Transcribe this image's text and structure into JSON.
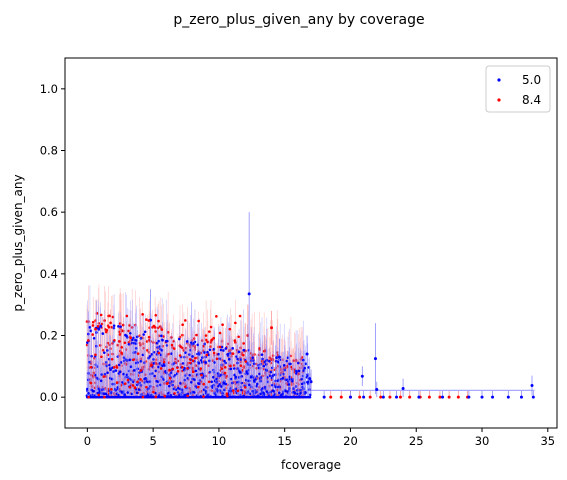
{
  "chart_data": {
    "type": "scatter",
    "title": "p_zero_plus_given_any by coverage",
    "xlabel": "fcoverage",
    "ylabel": "p_zero_plus_given_any",
    "xlim": [
      -1.7,
      35.7
    ],
    "ylim": [
      -0.1,
      1.1
    ],
    "xticks": [
      0,
      5,
      10,
      15,
      20,
      25,
      30,
      35
    ],
    "yticks": [
      0.0,
      0.2,
      0.4,
      0.6,
      0.8,
      1.0
    ],
    "xtick_labels": [
      "0",
      "5",
      "10",
      "15",
      "20",
      "25",
      "30",
      "35"
    ],
    "ytick_labels": [
      "0.0",
      "0.2",
      "0.4",
      "0.6",
      "0.8",
      "1.0"
    ],
    "grid": false,
    "legend_position": "upper right",
    "series": [
      {
        "name": "5.0",
        "color": "#0000ff",
        "error_color": "#8c8cff",
        "dense": {
          "x_start": 0,
          "x_end": 17,
          "y_max": 0.25
        },
        "points": [
          [
            12.3,
            0.335,
            0.6
          ],
          [
            4.8,
            0.25,
            0.35
          ],
          [
            21.9,
            0.125,
            0.24
          ],
          [
            16.7,
            0.14,
            0.2
          ],
          [
            14.6,
            0.13,
            0.19
          ],
          [
            20.9,
            0.068,
            0.1
          ],
          [
            17.0,
            0.05,
            0.09
          ],
          [
            16.9,
            0.06,
            0.1
          ],
          [
            24.0,
            0.028,
            0.06
          ],
          [
            22.0,
            0.025,
            0.05
          ],
          [
            33.8,
            0.038,
            0.07
          ],
          [
            18.0,
            0.0,
            0.02
          ],
          [
            20.0,
            0.0,
            0.02
          ],
          [
            21.0,
            0.0,
            0.02
          ],
          [
            22.5,
            0.0,
            0.02
          ],
          [
            23.5,
            0.0,
            0.02
          ],
          [
            25.2,
            0.0,
            0.02
          ],
          [
            27.0,
            0.0,
            0.02
          ],
          [
            29.0,
            0.0,
            0.02
          ],
          [
            30.0,
            0.0,
            0.02
          ],
          [
            30.8,
            0.0,
            0.02
          ],
          [
            32.0,
            0.0,
            0.02
          ],
          [
            33.0,
            0.0,
            0.02
          ],
          [
            33.9,
            0.0,
            0.02
          ]
        ]
      },
      {
        "name": "8.4",
        "color": "#ff0000",
        "error_color": "#ff9696",
        "dense": {
          "x_start": 0,
          "x_end": 16.5,
          "y_max": 0.28
        },
        "points": [
          [
            12.2,
            0.2,
            0.3
          ],
          [
            14.0,
            0.225,
            0.28
          ],
          [
            10.8,
            0.15,
            0.2
          ],
          [
            12.0,
            0.15,
            0.24
          ],
          [
            13.5,
            0.15,
            0.2
          ],
          [
            15.2,
            0.1,
            0.15
          ],
          [
            16.0,
            0.075,
            0.12
          ],
          [
            17.0,
            0.05,
            0.08
          ],
          [
            18.5,
            0.0,
            0.02
          ],
          [
            19.3,
            0.0,
            0.02
          ],
          [
            20.0,
            0.0,
            0.02
          ],
          [
            20.7,
            0.0,
            0.02
          ],
          [
            21.5,
            0.0,
            0.02
          ],
          [
            22.3,
            0.0,
            0.02
          ],
          [
            23.0,
            0.0,
            0.02
          ],
          [
            23.8,
            0.0,
            0.02
          ],
          [
            24.5,
            0.0,
            0.02
          ],
          [
            25.3,
            0.0,
            0.02
          ],
          [
            26.0,
            0.0,
            0.02
          ],
          [
            26.8,
            0.0,
            0.02
          ],
          [
            27.5,
            0.0,
            0.02
          ],
          [
            28.2,
            0.0,
            0.02
          ],
          [
            28.9,
            0.0,
            0.02
          ]
        ]
      }
    ],
    "trend_line": {
      "color": "#a8a8ff",
      "x_start": 0,
      "x_end": 34,
      "y": 0.022
    }
  }
}
